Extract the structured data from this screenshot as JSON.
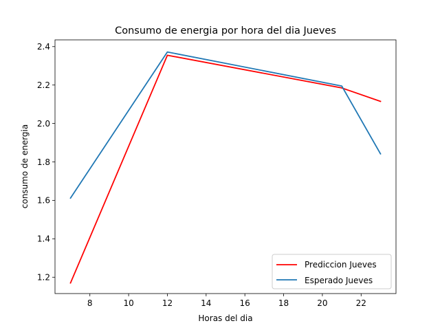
{
  "chart_data": {
    "type": "line",
    "title": "Consumo de energia por hora del dia Jueves",
    "xlabel": "Horas del dia",
    "ylabel": "consumo de energia",
    "xlim": [
      6.2,
      23.8
    ],
    "ylim": [
      1.115,
      2.435
    ],
    "xticks": [
      8,
      10,
      12,
      14,
      16,
      18,
      20,
      22
    ],
    "yticks": [
      1.2,
      1.4,
      1.6,
      1.8,
      2.0,
      2.2,
      2.4
    ],
    "ytick_labels": [
      "1.2",
      "1.4",
      "1.6",
      "1.8",
      "2.0",
      "2.2",
      "2.4"
    ],
    "grid": false,
    "legend_position": "lower-right",
    "series": [
      {
        "name": "Prediccion Jueves",
        "color": "#ff0000",
        "x": [
          7,
          12,
          21,
          23
        ],
        "y": [
          1.17,
          2.355,
          2.185,
          2.115
        ]
      },
      {
        "name": "Esperado Jueves",
        "color": "#1f77b4",
        "x": [
          7,
          12,
          21,
          23
        ],
        "y": [
          1.612,
          2.372,
          2.195,
          1.842
        ]
      }
    ]
  }
}
